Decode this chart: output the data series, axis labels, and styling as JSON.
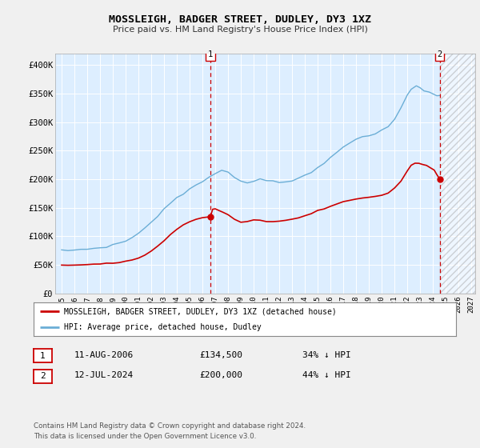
{
  "title": "MOSSLEIGH, BADGER STREET, DUDLEY, DY3 1XZ",
  "subtitle": "Price paid vs. HM Land Registry's House Price Index (HPI)",
  "ylabel_ticks": [
    "£0",
    "£50K",
    "£100K",
    "£150K",
    "£200K",
    "£250K",
    "£300K",
    "£350K",
    "£400K"
  ],
  "ytick_values": [
    0,
    50000,
    100000,
    150000,
    200000,
    250000,
    300000,
    350000,
    400000
  ],
  "ylim": [
    0,
    420000
  ],
  "xlim_left": 1994.5,
  "xlim_right": 2027.3,
  "bg_color": "#f0f0f0",
  "plot_bg": "#ddeeff",
  "grid_color": "#ffffff",
  "hpi_color": "#6baed6",
  "price_color": "#cc0000",
  "dashed_color": "#cc0000",
  "ann1_x": 2006.62,
  "ann1_y": 134500,
  "ann2_x": 2024.54,
  "ann2_y": 200000,
  "legend_line1": "MOSSLEIGH, BADGER STREET, DUDLEY, DY3 1XZ (detached house)",
  "legend_line2": "HPI: Average price, detached house, Dudley",
  "row1": [
    "1",
    "11-AUG-2006",
    "£134,500",
    "34% ↓ HPI"
  ],
  "row2": [
    "2",
    "12-JUL-2024",
    "£200,000",
    "44% ↓ HPI"
  ],
  "footer": "Contains HM Land Registry data © Crown copyright and database right 2024.\nThis data is licensed under the Open Government Licence v3.0.",
  "xtick_years": [
    1995,
    1996,
    1997,
    1998,
    1999,
    2000,
    2001,
    2002,
    2003,
    2004,
    2005,
    2006,
    2007,
    2008,
    2009,
    2010,
    2011,
    2012,
    2013,
    2014,
    2015,
    2016,
    2017,
    2018,
    2019,
    2020,
    2021,
    2022,
    2023,
    2024,
    2025,
    2026,
    2027
  ],
  "hpi_x": [
    1995.0,
    1995.5,
    1996.0,
    1996.5,
    1997.0,
    1997.5,
    1998.0,
    1998.5,
    1999.0,
    1999.5,
    2000.0,
    2000.5,
    2001.0,
    2001.5,
    2002.0,
    2002.5,
    2003.0,
    2003.5,
    2004.0,
    2004.5,
    2005.0,
    2005.5,
    2006.0,
    2006.5,
    2007.0,
    2007.5,
    2008.0,
    2008.5,
    2009.0,
    2009.5,
    2010.0,
    2010.5,
    2011.0,
    2011.5,
    2012.0,
    2012.5,
    2013.0,
    2013.5,
    2014.0,
    2014.5,
    2015.0,
    2015.5,
    2016.0,
    2016.5,
    2017.0,
    2017.5,
    2018.0,
    2018.5,
    2019.0,
    2019.5,
    2020.0,
    2020.5,
    2021.0,
    2021.5,
    2022.0,
    2022.3,
    2022.7,
    2023.0,
    2023.3,
    2023.7,
    2024.0,
    2024.3,
    2024.54
  ],
  "hpi_y": [
    75000,
    75500,
    76000,
    77000,
    78000,
    79000,
    80000,
    82000,
    85000,
    88000,
    92000,
    98000,
    105000,
    115000,
    125000,
    136000,
    148000,
    158000,
    168000,
    175000,
    182000,
    190000,
    196000,
    202000,
    210000,
    217000,
    213000,
    205000,
    196000,
    194000,
    197000,
    200000,
    199000,
    197000,
    196000,
    196000,
    198000,
    201000,
    206000,
    212000,
    220000,
    228000,
    238000,
    248000,
    258000,
    265000,
    270000,
    273000,
    276000,
    280000,
    285000,
    292000,
    305000,
    325000,
    348000,
    358000,
    365000,
    360000,
    355000,
    352000,
    350000,
    348000,
    347000
  ],
  "price_x": [
    1995.0,
    1995.5,
    1996.0,
    1996.5,
    1997.0,
    1997.5,
    1998.0,
    1998.5,
    1999.0,
    1999.5,
    2000.0,
    2000.5,
    2001.0,
    2001.5,
    2002.0,
    2002.5,
    2003.0,
    2003.5,
    2004.0,
    2004.5,
    2005.0,
    2005.5,
    2006.0,
    2006.4,
    2006.62,
    2006.8,
    2007.0,
    2007.3,
    2007.6,
    2008.0,
    2008.5,
    2009.0,
    2009.5,
    2010.0,
    2010.5,
    2011.0,
    2011.5,
    2012.0,
    2012.5,
    2013.0,
    2013.5,
    2014.0,
    2014.5,
    2015.0,
    2015.5,
    2016.0,
    2016.5,
    2017.0,
    2017.5,
    2018.0,
    2018.5,
    2019.0,
    2019.5,
    2020.0,
    2020.5,
    2021.0,
    2021.5,
    2022.0,
    2022.3,
    2022.6,
    2022.9,
    2023.2,
    2023.5,
    2023.8,
    2024.1,
    2024.3,
    2024.54
  ],
  "price_y": [
    49000,
    49500,
    50000,
    50500,
    51000,
    51500,
    52000,
    52500,
    53000,
    54000,
    56000,
    58000,
    62000,
    67000,
    74000,
    83000,
    93000,
    103000,
    112000,
    120000,
    126000,
    130000,
    133000,
    134000,
    134500,
    147000,
    148000,
    145000,
    142000,
    138000,
    130000,
    125000,
    126000,
    128000,
    128000,
    126000,
    126000,
    127000,
    128000,
    130000,
    133000,
    136000,
    140000,
    145000,
    148000,
    152000,
    157000,
    161000,
    163000,
    165000,
    167000,
    169000,
    170000,
    172000,
    176000,
    185000,
    196000,
    215000,
    225000,
    228000,
    228000,
    226000,
    224000,
    220000,
    216000,
    208000,
    200000
  ]
}
